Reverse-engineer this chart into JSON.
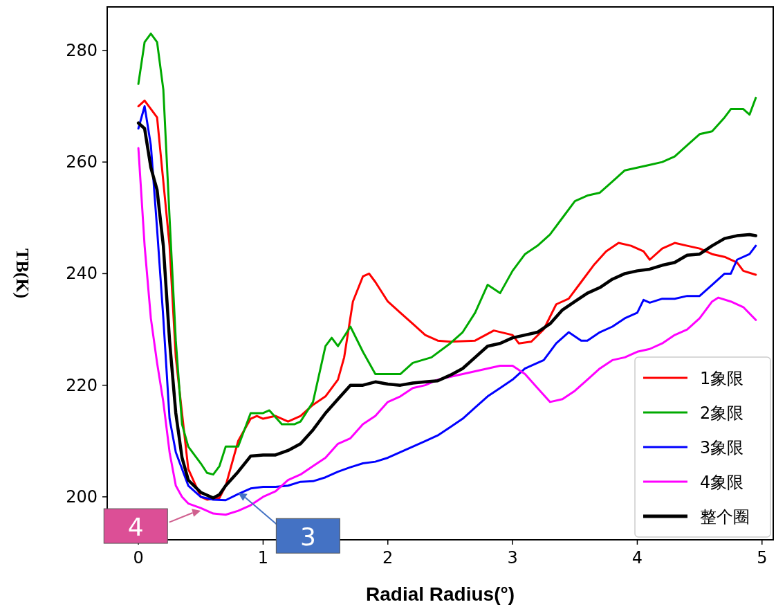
{
  "chart_data": {
    "type": "line",
    "xlabel": "Radial Radius(°)",
    "ylabel": "TB(K)",
    "xlim": [
      -0.25,
      5.09
    ],
    "ylim": [
      192.3,
      287.8
    ],
    "xticks": [
      0,
      1,
      2,
      3,
      4,
      5
    ],
    "yticks": [
      200,
      220,
      240,
      260,
      280
    ],
    "legend": "bottom right",
    "series": [
      {
        "name": "1象限",
        "color": "#ff0000",
        "x": [
          0,
          0.05,
          0.15,
          0.25,
          0.3,
          0.4,
          0.5,
          0.55,
          0.65,
          0.7,
          0.8,
          0.9,
          0.95,
          1.0,
          1.1,
          1.2,
          1.3,
          1.4,
          1.5,
          1.6,
          1.65,
          1.72,
          1.8,
          1.85,
          1.9,
          2.0,
          2.1,
          2.2,
          2.3,
          2.4,
          2.5,
          2.7,
          2.85,
          3.0,
          3.05,
          3.15,
          3.25,
          3.35,
          3.45,
          3.55,
          3.65,
          3.75,
          3.85,
          3.95,
          4.05,
          4.1,
          4.2,
          4.3,
          4.4,
          4.5,
          4.6,
          4.7,
          4.8,
          4.85,
          4.95
        ],
        "values": [
          270,
          271,
          268,
          245,
          225,
          205,
          200,
          199.5,
          199.8,
          202,
          210,
          214,
          214.5,
          214,
          214.5,
          213.5,
          214.5,
          216.5,
          218,
          221,
          225,
          235,
          239.5,
          240,
          238.5,
          235,
          233,
          231,
          229,
          228,
          227.8,
          228,
          229.8,
          229,
          227.5,
          227.8,
          230,
          234.5,
          235.5,
          238.5,
          241.5,
          244,
          245.5,
          245,
          244,
          242.5,
          244.5,
          245.5,
          245,
          244.5,
          243.5,
          243,
          242,
          240.5,
          239.8
        ]
      },
      {
        "name": "2象限",
        "color": "#00aa00",
        "x": [
          0,
          0.05,
          0.1,
          0.15,
          0.2,
          0.25,
          0.3,
          0.35,
          0.4,
          0.5,
          0.55,
          0.6,
          0.65,
          0.7,
          0.8,
          0.9,
          1.0,
          1.05,
          1.15,
          1.25,
          1.3,
          1.4,
          1.5,
          1.55,
          1.6,
          1.7,
          1.8,
          1.9,
          2.0,
          2.1,
          2.2,
          2.35,
          2.5,
          2.6,
          2.7,
          2.8,
          2.9,
          3.0,
          3.1,
          3.2,
          3.3,
          3.4,
          3.5,
          3.6,
          3.7,
          3.8,
          3.9,
          4.0,
          4.1,
          4.2,
          4.3,
          4.4,
          4.5,
          4.6,
          4.7,
          4.75,
          4.85,
          4.9,
          4.95
        ],
        "values": [
          274,
          281.5,
          283,
          281.5,
          273,
          250,
          228,
          213,
          209,
          206,
          204.3,
          204,
          205.5,
          209,
          209,
          215,
          215,
          215.5,
          213,
          213,
          213.5,
          217,
          227,
          228.5,
          227,
          230.5,
          226,
          222,
          222,
          222,
          224,
          225,
          227.5,
          229.5,
          233,
          238,
          236.5,
          240.5,
          243.5,
          245,
          247,
          250,
          253,
          254,
          254.5,
          256.5,
          258.5,
          259,
          259.5,
          260,
          261,
          263,
          265,
          265.5,
          268,
          269.5,
          269.5,
          268.5,
          271.5
        ]
      },
      {
        "name": "3象限",
        "color": "#0000ff",
        "x": [
          0,
          0.05,
          0.1,
          0.15,
          0.2,
          0.25,
          0.3,
          0.4,
          0.5,
          0.6,
          0.7,
          0.8,
          0.9,
          1.0,
          1.1,
          1.2,
          1.3,
          1.4,
          1.5,
          1.6,
          1.7,
          1.8,
          1.9,
          2.0,
          2.1,
          2.2,
          2.3,
          2.4,
          2.5,
          2.6,
          2.7,
          2.8,
          2.9,
          3.0,
          3.1,
          3.2,
          3.25,
          3.35,
          3.45,
          3.55,
          3.6,
          3.7,
          3.8,
          3.9,
          4.0,
          4.05,
          4.1,
          4.2,
          4.3,
          4.4,
          4.5,
          4.6,
          4.7,
          4.75,
          4.8,
          4.9,
          4.95
        ],
        "values": [
          266,
          270,
          263,
          248,
          232,
          214,
          208,
          202,
          200,
          199.5,
          199.4,
          200.5,
          201.5,
          201.8,
          201.8,
          202,
          202.7,
          202.8,
          203.5,
          204.5,
          205.3,
          206,
          206.3,
          207,
          208,
          209,
          210,
          211,
          212.5,
          214,
          216,
          218,
          219.5,
          221,
          223,
          224,
          224.5,
          227.5,
          229.5,
          228,
          228,
          229.5,
          230.5,
          232,
          233,
          235.3,
          234.8,
          235.5,
          235.5,
          236,
          236,
          238,
          240,
          240,
          242.5,
          243.5,
          245
        ]
      },
      {
        "name": "4象限",
        "color": "#ff00ff",
        "x": [
          0,
          0.05,
          0.1,
          0.15,
          0.2,
          0.25,
          0.3,
          0.35,
          0.4,
          0.5,
          0.6,
          0.7,
          0.8,
          0.9,
          1.0,
          1.1,
          1.2,
          1.3,
          1.4,
          1.5,
          1.6,
          1.7,
          1.8,
          1.9,
          2.0,
          2.1,
          2.2,
          2.3,
          2.4,
          2.5,
          2.6,
          2.7,
          2.8,
          2.9,
          3.0,
          3.1,
          3.2,
          3.3,
          3.4,
          3.5,
          3.6,
          3.7,
          3.8,
          3.9,
          4.0,
          4.1,
          4.2,
          4.3,
          4.4,
          4.5,
          4.6,
          4.65,
          4.75,
          4.85,
          4.95
        ],
        "values": [
          262.5,
          245,
          232,
          224,
          217,
          208,
          202,
          200,
          198.8,
          198,
          197,
          196.8,
          197.5,
          198.5,
          200,
          201,
          203,
          204,
          205.5,
          207,
          209.5,
          210.5,
          213,
          214.5,
          217,
          218,
          219.5,
          220,
          221,
          221.5,
          222,
          222.5,
          223,
          223.5,
          223.5,
          222,
          219.5,
          217,
          217.5,
          219,
          221,
          223,
          224.5,
          225,
          226,
          226.5,
          227.5,
          229,
          230,
          232,
          235,
          235.7,
          235,
          234,
          231.7
        ]
      },
      {
        "name": "整个圈",
        "color": "#000000",
        "x": [
          0,
          0.05,
          0.1,
          0.15,
          0.2,
          0.25,
          0.3,
          0.35,
          0.4,
          0.5,
          0.6,
          0.65,
          0.7,
          0.8,
          0.9,
          1.0,
          1.1,
          1.2,
          1.3,
          1.4,
          1.5,
          1.6,
          1.7,
          1.8,
          1.9,
          2.0,
          2.1,
          2.2,
          2.3,
          2.4,
          2.5,
          2.6,
          2.7,
          2.8,
          2.9,
          3.0,
          3.1,
          3.2,
          3.3,
          3.4,
          3.5,
          3.6,
          3.7,
          3.8,
          3.9,
          4.0,
          4.1,
          4.2,
          4.3,
          4.4,
          4.5,
          4.6,
          4.7,
          4.8,
          4.9,
          4.95
        ],
        "values": [
          267,
          266,
          259,
          255,
          245,
          228,
          215,
          207,
          203,
          200.8,
          199.8,
          200.4,
          202,
          204.5,
          207.3,
          207.5,
          207.5,
          208.3,
          209.5,
          212,
          215,
          217.5,
          220,
          220,
          220.6,
          220.2,
          220,
          220.4,
          220.6,
          220.8,
          221.8,
          223,
          225,
          227,
          227.5,
          228.5,
          229,
          229.5,
          231,
          233.5,
          235,
          236.5,
          237.5,
          239,
          240,
          240.5,
          240.8,
          241.5,
          242,
          243.3,
          243.5,
          245,
          246.3,
          246.8,
          247,
          246.8
        ]
      }
    ],
    "annotations": [
      {
        "text": "4",
        "x": 0.5,
        "y": 197.5
      },
      {
        "text": "3",
        "x": 0.8,
        "y": 200.7
      }
    ]
  }
}
